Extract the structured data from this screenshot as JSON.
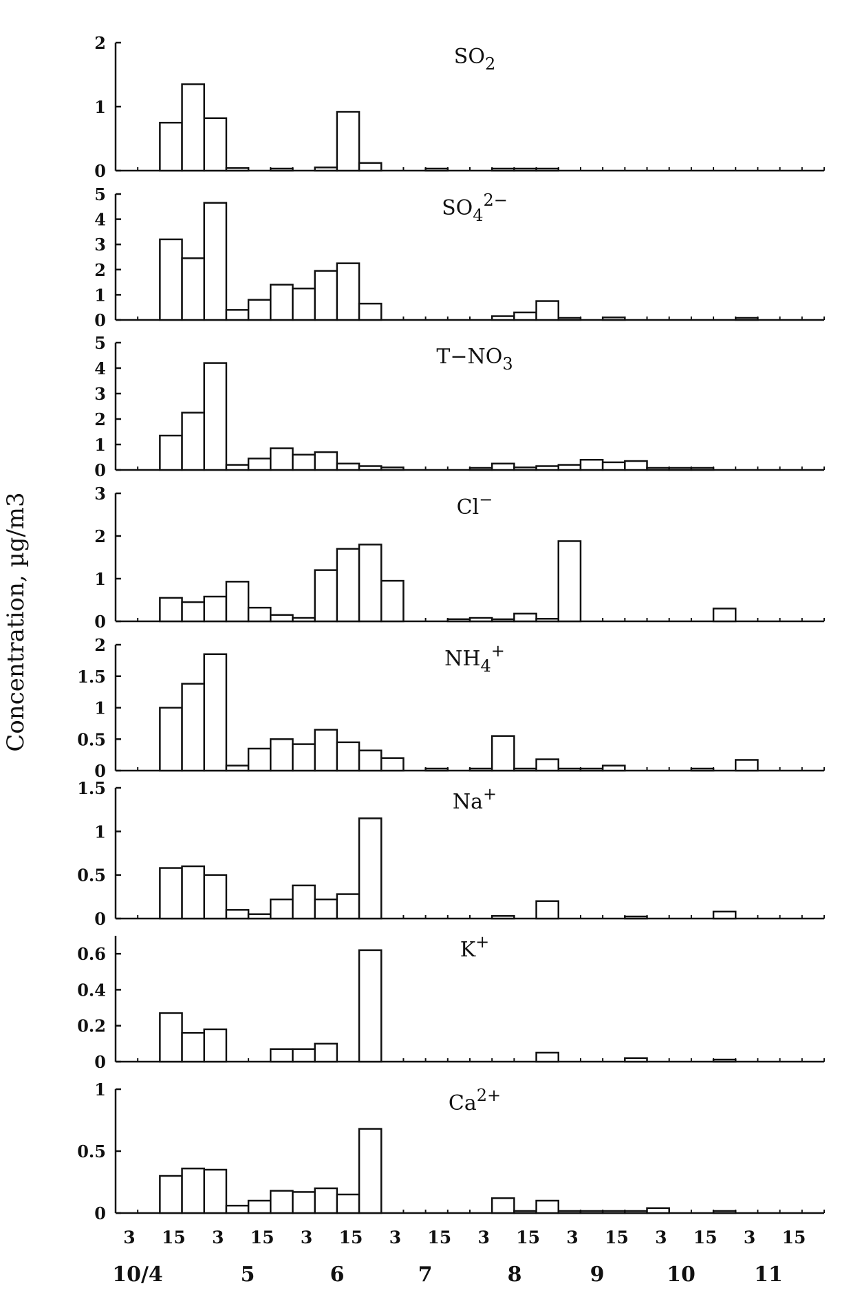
{
  "figure": {
    "ylabel": "Concentration, µg/m3",
    "x_day_labels": [
      "3",
      "15",
      "3",
      "15",
      "3",
      "15",
      "3",
      "15",
      "3",
      "15",
      "3",
      "15",
      "3",
      "15",
      "3",
      "15"
    ],
    "x_month_labels": [
      "10/4",
      "5",
      "6",
      "7",
      "8",
      "9",
      "10",
      "11"
    ]
  },
  "chart_data": [
    {
      "type": "bar",
      "title": "SO2",
      "title_base": "SO",
      "title_sub": "2",
      "title_sup": "",
      "ylim": [
        0,
        2
      ],
      "yticks": [
        0,
        1,
        2
      ],
      "ytick_labels": [
        "0",
        "1",
        "2"
      ],
      "x_start_bin": 2,
      "values": [
        0.75,
        1.35,
        0.82,
        0.04,
        0,
        0.02,
        0,
        0.05,
        0.92,
        0.12,
        0,
        0,
        0.01,
        0,
        0,
        0.02,
        0.02,
        0.01
      ]
    },
    {
      "type": "bar",
      "title": "SO42-",
      "title_base": "SO",
      "title_sub": "4",
      "title_sup": "2−",
      "ylim": [
        0,
        5
      ],
      "yticks": [
        0,
        1,
        2,
        3,
        4,
        5
      ],
      "ytick_labels": [
        "0",
        "1",
        "2",
        "3",
        "4",
        "5"
      ],
      "x_start_bin": 2,
      "values": [
        3.2,
        2.45,
        4.65,
        0.4,
        0.8,
        1.4,
        1.25,
        1.95,
        2.25,
        0.65,
        0,
        0,
        0,
        0,
        0,
        0.15,
        0.3,
        0.75,
        0.05,
        0,
        0.1,
        0,
        0,
        0,
        0,
        0,
        0.05
      ]
    },
    {
      "type": "bar",
      "title": "T-NO3",
      "title_base": "T−NO",
      "title_sub": "3",
      "title_sup": "",
      "ylim": [
        0,
        5
      ],
      "yticks": [
        0,
        1,
        2,
        3,
        4,
        5
      ],
      "ytick_labels": [
        "0",
        "1",
        "2",
        "3",
        "4",
        "5"
      ],
      "x_start_bin": 2,
      "values": [
        1.35,
        2.25,
        4.2,
        0.2,
        0.45,
        0.85,
        0.6,
        0.7,
        0.25,
        0.15,
        0.1,
        0,
        0,
        0,
        0.05,
        0.25,
        0.1,
        0.15,
        0.2,
        0.4,
        0.3,
        0.35,
        0.05,
        0.02,
        0.03,
        0,
        0
      ]
    },
    {
      "type": "bar",
      "title": "Cl-",
      "title_base": "Cl",
      "title_sub": "",
      "title_sup": "−",
      "ylim": [
        0,
        3
      ],
      "yticks": [
        0,
        1,
        2,
        3
      ],
      "ytick_labels": [
        "0",
        "1",
        "2",
        "3"
      ],
      "x_start_bin": 2,
      "values": [
        0.55,
        0.45,
        0.58,
        0.93,
        0.32,
        0.15,
        0.08,
        1.2,
        1.7,
        1.8,
        0.95,
        0,
        0,
        0.05,
        0.08,
        0.02,
        0.18,
        0.06,
        1.88,
        0,
        0,
        0,
        0,
        0,
        0,
        0.3
      ]
    },
    {
      "type": "bar",
      "title": "NH4+",
      "title_base": "NH",
      "title_sub": "4",
      "title_sup": "+",
      "ylim": [
        0,
        2
      ],
      "yticks": [
        0,
        0.5,
        1,
        1.5,
        2
      ],
      "ytick_labels": [
        "0",
        "0.5",
        "1",
        "1.5",
        "2"
      ],
      "x_start_bin": 2,
      "values": [
        1.0,
        1.38,
        1.85,
        0.08,
        0.35,
        0.5,
        0.42,
        0.65,
        0.45,
        0.32,
        0.2,
        0,
        0.03,
        0,
        0.01,
        0.55,
        0.02,
        0.18,
        0.03,
        0.03,
        0.08,
        0,
        0,
        0,
        0.02,
        0,
        0.17
      ]
    },
    {
      "type": "bar",
      "title": "Na+",
      "title_base": "Na",
      "title_sub": "",
      "title_sup": "+",
      "ylim": [
        0,
        1.5
      ],
      "yticks": [
        0,
        0.5,
        1,
        1.5
      ],
      "ytick_labels": [
        "0",
        "0.5",
        "1",
        "1.5"
      ],
      "x_start_bin": 2,
      "values": [
        0.58,
        0.6,
        0.5,
        0.1,
        0.05,
        0.22,
        0.38,
        0.22,
        0.28,
        1.15,
        0,
        0,
        0,
        0,
        0,
        0.03,
        0,
        0.2,
        0,
        0,
        0,
        0.02,
        0,
        0,
        0,
        0.08
      ]
    },
    {
      "type": "bar",
      "title": "K+",
      "title_base": "K",
      "title_sub": "",
      "title_sup": "+",
      "ylim": [
        0,
        0.7
      ],
      "yticks": [
        0,
        0.2,
        0.4,
        0.6
      ],
      "ytick_labels": [
        "0",
        "0.2",
        "0.4",
        "0.6"
      ],
      "x_start_bin": 2,
      "values": [
        0.27,
        0.16,
        0.18,
        0,
        0,
        0.07,
        0.07,
        0.1,
        0,
        0.62,
        0,
        0,
        0,
        0,
        0,
        0,
        0,
        0.05,
        0,
        0,
        0,
        0.02,
        0,
        0,
        0,
        0.01
      ]
    },
    {
      "type": "bar",
      "title": "Ca2+",
      "title_base": "Ca",
      "title_sub": "",
      "title_sup": "2+",
      "ylim": [
        0,
        1
      ],
      "yticks": [
        0,
        0.5,
        1
      ],
      "ytick_labels": [
        "0",
        "0.5",
        "1"
      ],
      "x_start_bin": 2,
      "values": [
        0.3,
        0.36,
        0.35,
        0.06,
        0.1,
        0.18,
        0.17,
        0.2,
        0.15,
        0.68,
        0,
        0,
        0,
        0,
        0,
        0.12,
        0.01,
        0.1,
        0.01,
        0.01,
        0.01,
        0.01,
        0.04,
        0,
        0,
        0.01
      ]
    }
  ]
}
